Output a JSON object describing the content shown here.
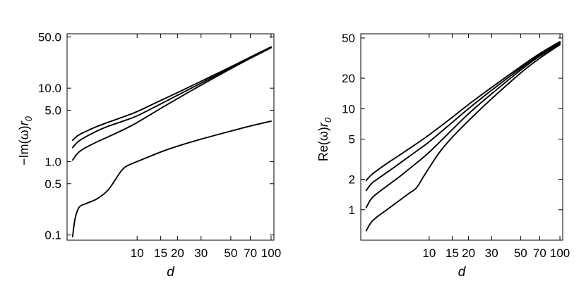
{
  "chart_data": [
    {
      "type": "line",
      "xscale": "log",
      "yscale": "log",
      "xlabel": "d",
      "ylabel": "−Im(ω)r0",
      "xlim": [
        3,
        105
      ],
      "ylim": [
        0.085,
        55
      ],
      "xticks": [
        10,
        15,
        20,
        30,
        50,
        70,
        100
      ],
      "xticklabels": [
        "10",
        "15",
        "20",
        "30",
        "50",
        "70",
        "100"
      ],
      "yticks": [
        0.1,
        0.5,
        1,
        5,
        10,
        50
      ],
      "yticklabels": [
        "0.1",
        "0.5",
        "1.0",
        "5.0",
        "10.0",
        "50.0"
      ],
      "grid": false,
      "series": [
        {
          "x": [
            3.3,
            3.6,
            4,
            5,
            6,
            8,
            10,
            15,
            20,
            30,
            50,
            70,
            100
          ],
          "y": [
            1.95,
            2.25,
            2.5,
            3.0,
            3.4,
            4.1,
            4.8,
            6.8,
            8.7,
            12.4,
            19.5,
            26.5,
            36.5
          ]
        },
        {
          "x": [
            3.3,
            3.6,
            4,
            5,
            6,
            8,
            10,
            15,
            20,
            30,
            50,
            70,
            100
          ],
          "y": [
            1.55,
            1.85,
            2.1,
            2.6,
            3.0,
            3.6,
            4.2,
            6.1,
            8.0,
            11.7,
            19.0,
            26.0,
            36.0
          ]
        },
        {
          "x": [
            3.3,
            3.6,
            4,
            5,
            6,
            8,
            10,
            15,
            20,
            30,
            50,
            70,
            100
          ],
          "y": [
            1.05,
            1.3,
            1.5,
            1.85,
            2.15,
            2.75,
            3.4,
            5.3,
            7.2,
            11.0,
            18.4,
            25.5,
            35.5
          ]
        },
        {
          "x": [
            3.3,
            3.45,
            3.7,
            4.2,
            5.0,
            6.0,
            6.8,
            7.5,
            8.2,
            9.2,
            10,
            15,
            20,
            30,
            50,
            70,
            100
          ],
          "y": [
            0.095,
            0.17,
            0.24,
            0.27,
            0.31,
            0.4,
            0.55,
            0.72,
            0.85,
            0.94,
            1.0,
            1.35,
            1.62,
            2.02,
            2.6,
            3.05,
            3.55
          ]
        }
      ]
    },
    {
      "type": "line",
      "xscale": "log",
      "yscale": "log",
      "xlabel": "d",
      "ylabel": "Re(ω)r0",
      "xlim": [
        3,
        105
      ],
      "ylim": [
        0.5,
        55
      ],
      "xticks": [
        10,
        15,
        20,
        30,
        50,
        70,
        100
      ],
      "xticklabels": [
        "10",
        "15",
        "20",
        "30",
        "50",
        "70",
        "100"
      ],
      "yticks": [
        1,
        2,
        5,
        10,
        20,
        50
      ],
      "yticklabels": [
        "1",
        "2",
        "5",
        "10",
        "20",
        "50"
      ],
      "grid": false,
      "series": [
        {
          "x": [
            3.3,
            3.6,
            4,
            5,
            6,
            8,
            10,
            15,
            20,
            30,
            50,
            70,
            100
          ],
          "y": [
            1.95,
            2.2,
            2.45,
            3.0,
            3.5,
            4.5,
            5.5,
            8.2,
            11.0,
            16.2,
            26.0,
            35.0,
            46.0
          ]
        },
        {
          "x": [
            3.3,
            3.6,
            4,
            5,
            6,
            8,
            10,
            15,
            20,
            30,
            50,
            70,
            100
          ],
          "y": [
            1.55,
            1.8,
            2.0,
            2.45,
            2.9,
            3.8,
            4.7,
            7.3,
            10.0,
            15.2,
            25.0,
            34.0,
            45.0
          ]
        },
        {
          "x": [
            3.3,
            3.6,
            4,
            5,
            6,
            8,
            10,
            15,
            20,
            30,
            50,
            70,
            100
          ],
          "y": [
            1.05,
            1.28,
            1.45,
            1.8,
            2.15,
            2.9,
            3.7,
            6.2,
            8.9,
            14.0,
            24.0,
            33.0,
            44.0
          ]
        },
        {
          "x": [
            3.3,
            3.6,
            4,
            5,
            6,
            7,
            8,
            9,
            10,
            12,
            15,
            20,
            30,
            50,
            70,
            100
          ],
          "y": [
            0.62,
            0.75,
            0.85,
            1.05,
            1.25,
            1.45,
            1.65,
            2.1,
            2.6,
            3.7,
            5.2,
            7.6,
            12.5,
            22.5,
            31.5,
            43.0
          ]
        }
      ]
    }
  ]
}
